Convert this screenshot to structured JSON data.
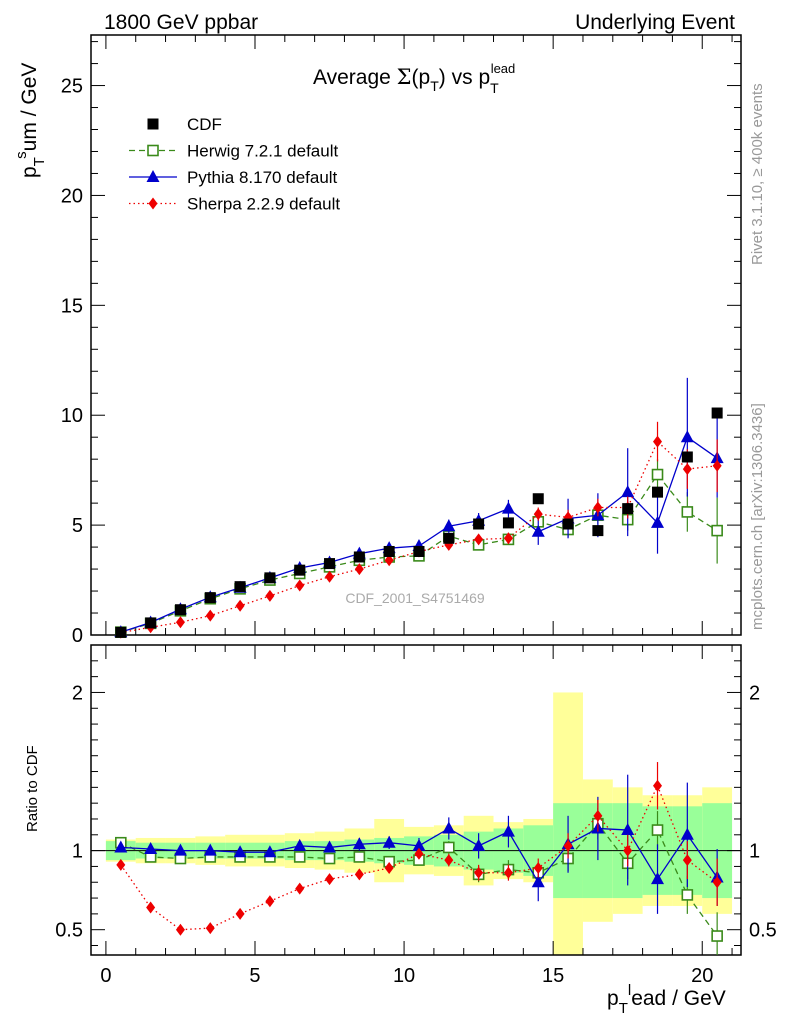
{
  "header": {
    "left": "1800 GeV ppbar",
    "right": "Underlying Event"
  },
  "side_labels": {
    "rivet": "Rivet 3.1.10, ≥ 400k events",
    "mcplots": "mcplots.cern.ch [arXiv:1306.3436]"
  },
  "watermark": "CDF_2001_S4751469",
  "chart_data": {
    "type": "scatter",
    "title": "Average Σ(p_T) vs p_T^lead",
    "xlabel": "p_T^lead / GeV",
    "ylabel": "p_T^sum / GeV",
    "ratio_ylabel": "Ratio to CDF",
    "xlim": [
      -0.5,
      21.3
    ],
    "ylim": [
      0,
      27.3
    ],
    "ratio_ylim": [
      0.34,
      2.3
    ],
    "main_ticks": [
      "0",
      "5",
      "10",
      "15",
      "20",
      "25"
    ],
    "ratio_ticks": [
      "0.5",
      "1",
      "2"
    ],
    "x_ticks": [
      "0",
      "5",
      "10",
      "15",
      "20"
    ],
    "legend_position": "top-left",
    "colors": {
      "cdf": "#000000",
      "herwig": "#3a8a1a",
      "pythia": "#0000cc",
      "sherpa": "#ee0000",
      "band_outer": "#ffff99",
      "band_inner": "#99ff99"
    },
    "x": [
      0.5,
      1.5,
      2.5,
      3.5,
      4.5,
      5.5,
      6.5,
      7.5,
      8.5,
      9.5,
      10.5,
      11.5,
      12.5,
      13.5,
      14.5,
      15.5,
      16.5,
      17.5,
      18.5,
      19.5,
      20.5
    ],
    "cdf": {
      "name": "CDF",
      "values": [
        0.12,
        0.55,
        1.15,
        1.7,
        2.2,
        2.6,
        2.95,
        3.25,
        3.55,
        3.8,
        3.8,
        4.4,
        5.05,
        5.1,
        6.2,
        5.05,
        4.75,
        5.75,
        6.5,
        8.1,
        10.1
      ],
      "band_inner": [
        0.06,
        0.05,
        0.05,
        0.05,
        0.05,
        0.05,
        0.06,
        0.06,
        0.07,
        0.08,
        0.09,
        0.1,
        0.12,
        0.14,
        0.16,
        0.3,
        0.3,
        0.3,
        0.28,
        0.28,
        0.3
      ],
      "band_outer": [
        0.07,
        0.08,
        0.08,
        0.09,
        0.1,
        0.1,
        0.11,
        0.12,
        0.14,
        0.2,
        0.15,
        0.16,
        0.22,
        0.18,
        0.2,
        1.0,
        0.45,
        0.4,
        0.35,
        0.35,
        0.4
      ]
    },
    "series": [
      {
        "name": "Herwig 7.2.1 default",
        "values": [
          0.13,
          0.53,
          1.1,
          1.65,
          2.1,
          2.5,
          2.8,
          3.1,
          3.4,
          3.55,
          3.6,
          4.5,
          4.1,
          4.35,
          5.15,
          4.8,
          5.45,
          5.25,
          7.3,
          5.6,
          4.75
        ],
        "errors": [
          0.01,
          0.01,
          0.02,
          0.02,
          0.03,
          0.03,
          0.04,
          0.05,
          0.06,
          0.08,
          0.1,
          0.15,
          0.2,
          0.25,
          0.3,
          0.35,
          0.4,
          0.5,
          0.7,
          0.9,
          1.5
        ],
        "ratio": [
          1.05,
          0.96,
          0.95,
          0.96,
          0.96,
          0.96,
          0.96,
          0.95,
          0.96,
          0.93,
          0.94,
          1.02,
          0.85,
          0.88,
          0.86,
          0.95,
          1.17,
          0.92,
          1.13,
          0.72,
          0.46
        ],
        "ratio_errors": [
          0.02,
          0.02,
          0.02,
          0.02,
          0.02,
          0.02,
          0.02,
          0.02,
          0.02,
          0.03,
          0.03,
          0.04,
          0.05,
          0.06,
          0.06,
          0.08,
          0.1,
          0.1,
          0.12,
          0.12,
          0.15
        ]
      },
      {
        "name": "Pythia 8.170 default",
        "values": [
          0.13,
          0.57,
          1.17,
          1.72,
          2.15,
          2.6,
          3.05,
          3.3,
          3.7,
          3.95,
          4.05,
          4.95,
          5.2,
          5.75,
          4.7,
          5.3,
          5.45,
          6.5,
          5.1,
          9.0,
          8.05
        ],
        "errors": [
          0.01,
          0.01,
          0.02,
          0.03,
          0.03,
          0.04,
          0.05,
          0.06,
          0.08,
          0.1,
          0.15,
          0.3,
          0.35,
          0.4,
          0.6,
          0.9,
          1.0,
          2.0,
          1.4,
          2.7,
          1.8
        ],
        "ratio": [
          1.02,
          1.01,
          1.0,
          1.0,
          0.99,
          0.99,
          1.03,
          1.02,
          1.04,
          1.05,
          1.03,
          1.14,
          1.03,
          1.12,
          0.8,
          1.04,
          1.14,
          1.13,
          0.82,
          1.1,
          0.83
        ],
        "ratio_errors": [
          0.02,
          0.02,
          0.02,
          0.02,
          0.02,
          0.02,
          0.03,
          0.03,
          0.04,
          0.04,
          0.05,
          0.07,
          0.08,
          0.1,
          0.12,
          0.18,
          0.2,
          0.35,
          0.22,
          0.33,
          0.18
        ]
      },
      {
        "name": "Sherpa 2.2.9 default",
        "values": [
          0.11,
          0.35,
          0.58,
          0.88,
          1.33,
          1.78,
          2.25,
          2.65,
          3.0,
          3.4,
          3.8,
          4.1,
          4.35,
          4.4,
          5.5,
          5.35,
          5.8,
          5.8,
          8.8,
          7.55,
          7.7
        ],
        "errors": [
          0.01,
          0.01,
          0.02,
          0.02,
          0.03,
          0.03,
          0.04,
          0.05,
          0.06,
          0.08,
          0.1,
          0.15,
          0.2,
          0.25,
          0.3,
          0.35,
          0.4,
          0.5,
          0.9,
          0.9,
          1.2
        ],
        "ratio": [
          0.91,
          0.64,
          0.5,
          0.51,
          0.6,
          0.68,
          0.76,
          0.82,
          0.85,
          0.89,
          0.98,
          0.94,
          0.86,
          0.86,
          0.89,
          1.03,
          1.22,
          1.0,
          1.41,
          0.94,
          0.8
        ],
        "ratio_errors": [
          0.01,
          0.01,
          0.01,
          0.01,
          0.01,
          0.01,
          0.02,
          0.02,
          0.02,
          0.03,
          0.03,
          0.04,
          0.05,
          0.05,
          0.06,
          0.08,
          0.1,
          0.1,
          0.15,
          0.12,
          0.15
        ]
      }
    ]
  }
}
